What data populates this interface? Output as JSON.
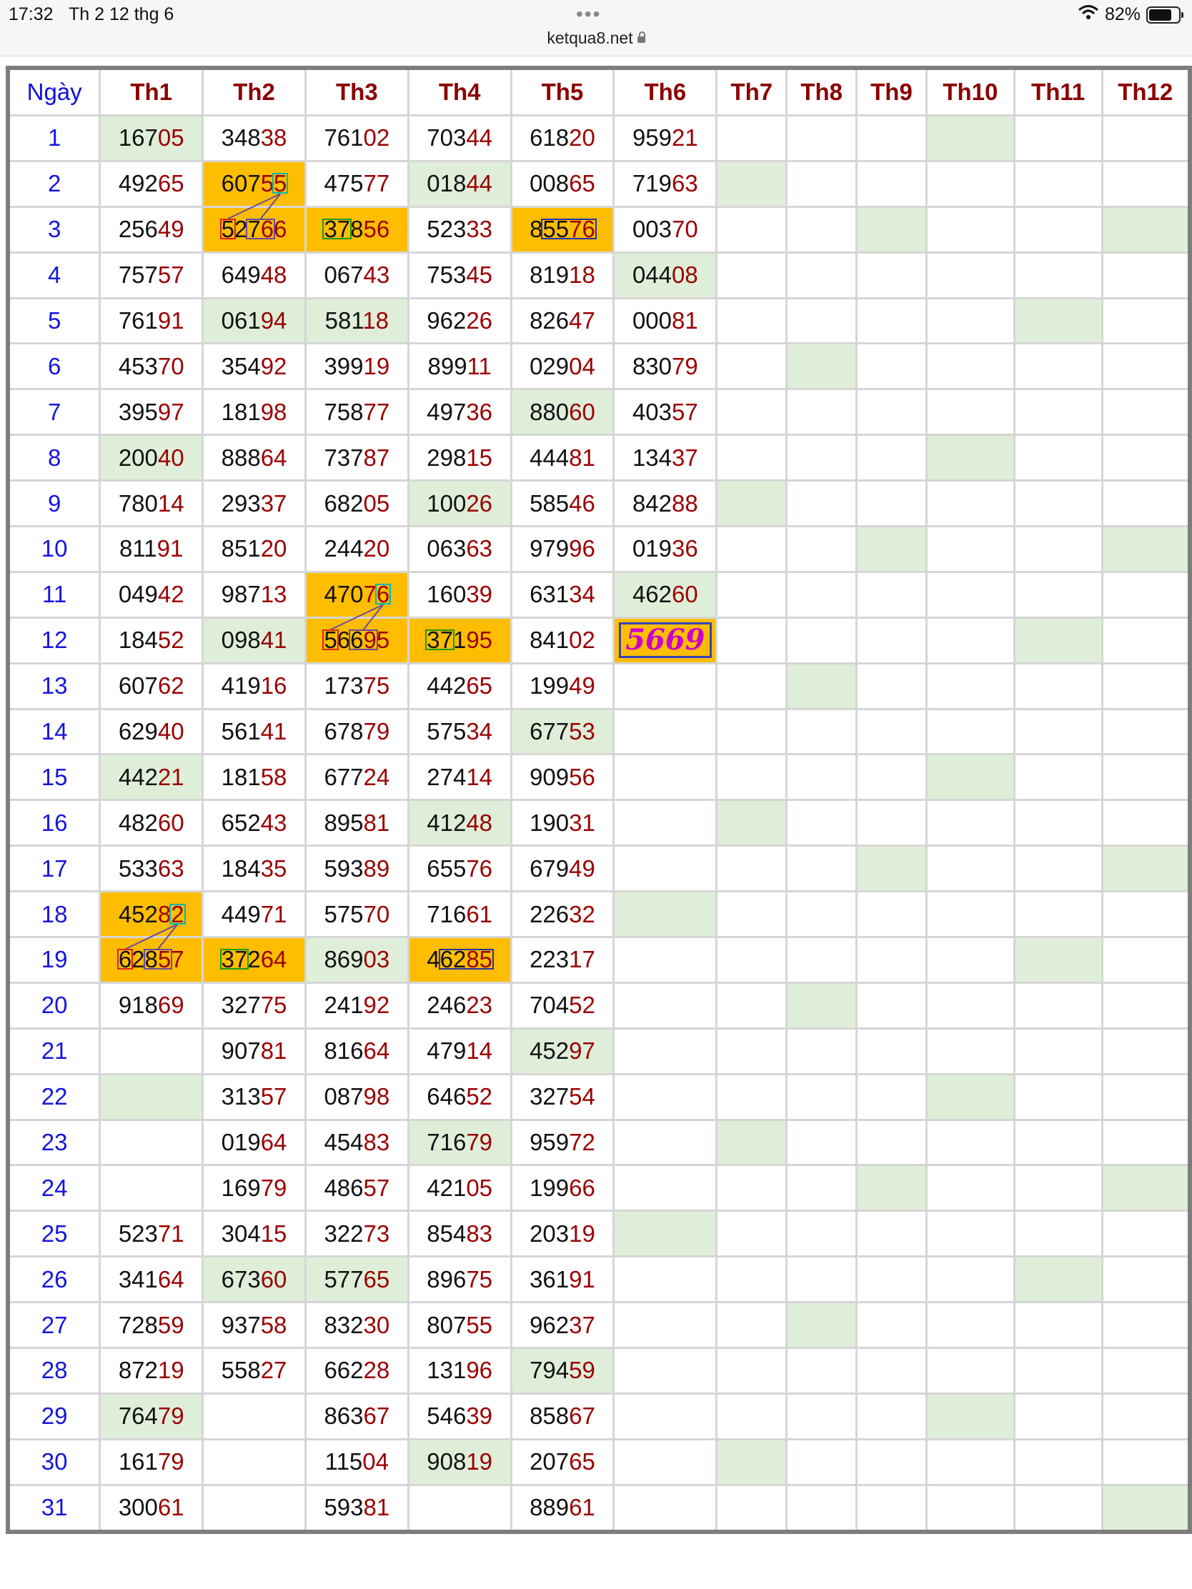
{
  "status_bar": {
    "time": "17:32",
    "date": "Th 2 12 thg 6",
    "url": "ketqua8.net",
    "battery": "82%",
    "battery_level": 0.82
  },
  "colors": {
    "day": "#1515e0",
    "month_header": "#8b0000",
    "last_digits": "#9b0000",
    "green_cell": "#dfeed9",
    "orange_cell": "#ffbd00",
    "prediction_text": "#cc00cc"
  },
  "table": {
    "header_day": "Ngày",
    "months": [
      "Th1",
      "Th2",
      "Th3",
      "Th4",
      "Th5",
      "Th6",
      "Th7",
      "Th8",
      "Th9",
      "Th10",
      "Th11",
      "Th12"
    ],
    "days": [
      "1",
      "2",
      "3",
      "4",
      "5",
      "6",
      "7",
      "8",
      "9",
      "10",
      "11",
      "12",
      "13",
      "14",
      "15",
      "16",
      "17",
      "18",
      "19",
      "20",
      "21",
      "22",
      "23",
      "24",
      "25",
      "26",
      "27",
      "28",
      "29",
      "30",
      "31"
    ],
    "results": [
      [
        "16705",
        "34838",
        "76102",
        "70344",
        "61820",
        "95921"
      ],
      [
        "49265",
        "60755",
        "47577",
        "01844",
        "00865",
        "71963"
      ],
      [
        "25649",
        "52766",
        "37856",
        "52333",
        "85576",
        "00370"
      ],
      [
        "75757",
        "64948",
        "06743",
        "75345",
        "81918",
        "04408"
      ],
      [
        "76191",
        "06194",
        "58118",
        "96226",
        "82647",
        "00081"
      ],
      [
        "45370",
        "35492",
        "39919",
        "89911",
        "02904",
        "83079"
      ],
      [
        "39597",
        "18198",
        "75877",
        "49736",
        "88060",
        "40357"
      ],
      [
        "20040",
        "88864",
        "73787",
        "29815",
        "44481",
        "13437"
      ],
      [
        "78014",
        "29337",
        "68205",
        "10026",
        "58546",
        "84288"
      ],
      [
        "81191",
        "85120",
        "24420",
        "06363",
        "97996",
        "01936"
      ],
      [
        "04942",
        "98713",
        "47076",
        "16039",
        "63134",
        "46260"
      ],
      [
        "18452",
        "09841",
        "56695",
        "37195",
        "84102",
        ""
      ],
      [
        "60762",
        "41916",
        "17375",
        "44265",
        "19949",
        ""
      ],
      [
        "62940",
        "56141",
        "67879",
        "57534",
        "67753",
        ""
      ],
      [
        "44221",
        "18158",
        "67724",
        "27414",
        "90956",
        ""
      ],
      [
        "48260",
        "65243",
        "89581",
        "41248",
        "19031",
        ""
      ],
      [
        "53363",
        "18435",
        "59389",
        "65576",
        "67949",
        ""
      ],
      [
        "45282",
        "44971",
        "57570",
        "71661",
        "22632",
        ""
      ],
      [
        "62857",
        "37264",
        "86903",
        "46285",
        "22317",
        ""
      ],
      [
        "91869",
        "32775",
        "24192",
        "24623",
        "70452",
        ""
      ],
      [
        "",
        "90781",
        "81664",
        "47914",
        "45297",
        ""
      ],
      [
        "",
        "31357",
        "08798",
        "64652",
        "32754",
        ""
      ],
      [
        "",
        "01964",
        "45483",
        "71679",
        "95972",
        ""
      ],
      [
        "",
        "16979",
        "48657",
        "42105",
        "19966",
        ""
      ],
      [
        "52371",
        "30415",
        "32273",
        "85483",
        "20319",
        ""
      ],
      [
        "34164",
        "67360",
        "57765",
        "89675",
        "36191",
        ""
      ],
      [
        "72859",
        "93758",
        "83230",
        "80755",
        "96237",
        ""
      ],
      [
        "87219",
        "55827",
        "66228",
        "13196",
        "79459",
        ""
      ],
      [
        "76479",
        "",
        "86367",
        "54639",
        "85867",
        ""
      ],
      [
        "16179",
        "",
        "11504",
        "90819",
        "20765",
        ""
      ],
      [
        "30061",
        "",
        "59381",
        "",
        "88961",
        ""
      ]
    ],
    "prediction": "5669"
  }
}
